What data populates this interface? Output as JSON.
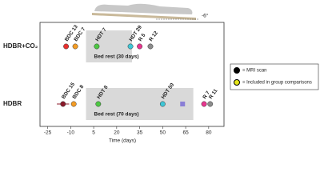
{
  "chart_data": {
    "type": "timeline",
    "annotation": "-6°",
    "xlabel": "Time (days)",
    "xlim": [
      -30,
      90
    ],
    "xticks": [
      -25,
      -10,
      5,
      20,
      35,
      50,
      65,
      80
    ],
    "rows": [
      {
        "name": "HDBR+CO₂",
        "periods": [
          {
            "label": "Bed rest (30 days)",
            "start": 0,
            "end": 30,
            "color": "#d9d9d9"
          }
        ],
        "points": [
          {
            "label": "BDC 13",
            "x": -13,
            "color": "#e8312f"
          },
          {
            "label": "BDC 7",
            "x": -7,
            "color": "#f39c25"
          },
          {
            "label": "HDT 7",
            "x": 7,
            "color": "#4dc843"
          },
          {
            "label": "HDT 29",
            "x": 29,
            "color": "#3fc6d6"
          },
          {
            "label": "R 5",
            "x": 35,
            "color": "#e8368f"
          },
          {
            "label": "R 12",
            "x": 42,
            "color": "#8c8c8c"
          }
        ]
      },
      {
        "name": "HDBR",
        "periods": [
          {
            "label": "Bed rest (70 days)",
            "start": 0,
            "end": 70,
            "color": "#d9d9d9"
          }
        ],
        "points": [
          {
            "label": "BDC 15",
            "x": -15,
            "xerr": 4,
            "color": "#8b1a2a"
          },
          {
            "label": "BDC 8",
            "x": -8,
            "color": "#f39c25"
          },
          {
            "label": "HDT 8",
            "x": 8,
            "color": "#4dc843"
          },
          {
            "label": "HDT 50",
            "x": 50,
            "color": "#3fc6d6"
          },
          {
            "x": 63,
            "color": "#8a7fd6",
            "shape": "square"
          },
          {
            "label": "R 7",
            "x": 77,
            "color": "#e8368f"
          },
          {
            "label": "R 11",
            "x": 81,
            "color": "#8c8c8c"
          }
        ]
      }
    ],
    "legend": [
      {
        "label": "= MRI scan",
        "color": "#000000"
      },
      {
        "label": "= Included in group comparisons",
        "color": "#e6e619"
      }
    ]
  }
}
